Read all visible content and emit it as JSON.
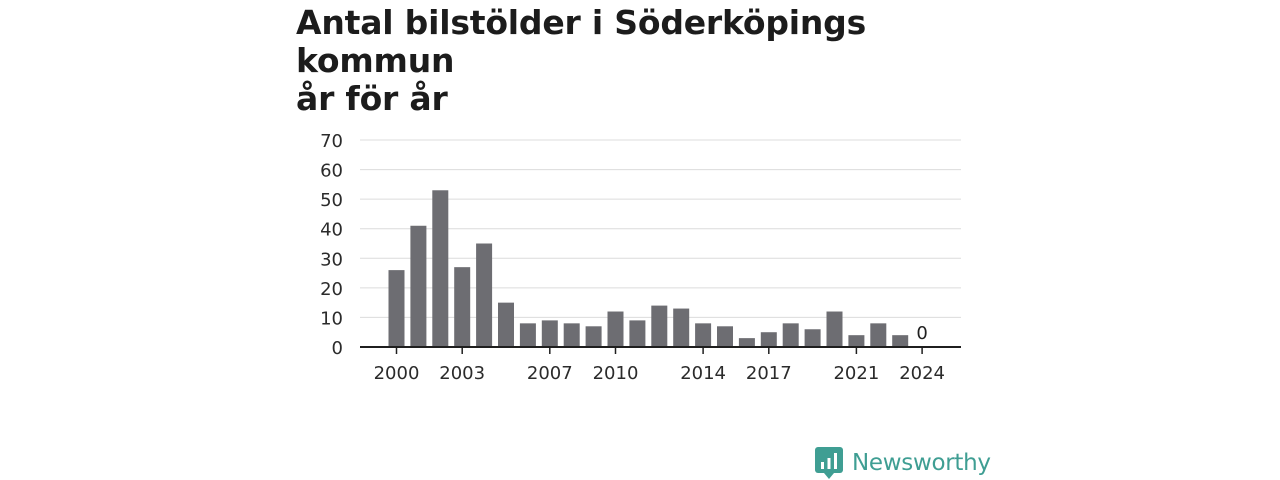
{
  "title_line1": "Antal bilstölder i Söderköpings kommun",
  "title_line2": "år för år",
  "brand": {
    "name": "Newsworthy",
    "icon": "bar-chart-logo-icon",
    "color": "#3f9e93"
  },
  "chart_data": {
    "type": "bar",
    "title": "Antal bilstölder i Söderköpings kommun år för år",
    "xlabel": "",
    "ylabel": "",
    "categories": [
      "2000",
      "2001",
      "2002",
      "2003",
      "2004",
      "2005",
      "2006",
      "2007",
      "2008",
      "2009",
      "2010",
      "2011",
      "2012",
      "2013",
      "2014",
      "2015",
      "2016",
      "2017",
      "2018",
      "2019",
      "2020",
      "2021",
      "2022",
      "2023",
      "2024"
    ],
    "values": [
      26,
      41,
      53,
      27,
      35,
      15,
      8,
      9,
      8,
      7,
      12,
      9,
      14,
      13,
      8,
      7,
      3,
      5,
      8,
      6,
      12,
      4,
      8,
      4,
      0
    ],
    "ylim": [
      0,
      70
    ],
    "yticks": [
      "0",
      "10",
      "20",
      "30",
      "40",
      "50",
      "60",
      "70"
    ],
    "xticks": [
      "2000",
      "2003",
      "2007",
      "2010",
      "2014",
      "2017",
      "2021",
      "2024"
    ],
    "annotations": [
      {
        "category": "2024",
        "text": "0"
      }
    ],
    "bar_color": "#6d6d72",
    "grid": true,
    "legend": "none"
  }
}
